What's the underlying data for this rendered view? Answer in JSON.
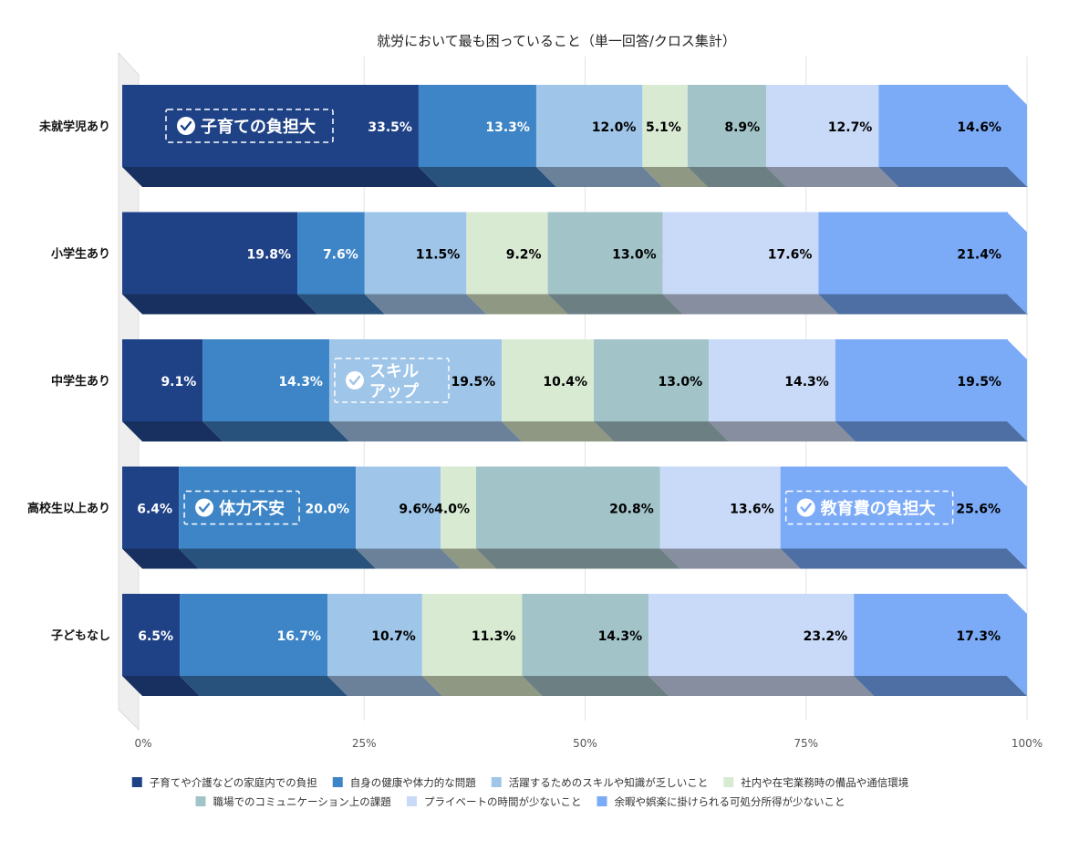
{
  "chart_data": {
    "type": "bar",
    "orientation": "horizontal",
    "stacked": true,
    "normalized": true,
    "title": "就労において最も困っていること（単一回答/クロス集計）",
    "xlabel": "",
    "ylabel": "",
    "xlim": [
      0,
      100
    ],
    "x_ticks": [
      "0%",
      "25%",
      "50%",
      "75%",
      "100%"
    ],
    "grid": true,
    "legend_position": "bottom",
    "categories": [
      "未就学児あり",
      "小学生あり",
      "中学生あり",
      "高校生以上あり",
      "子どもなし"
    ],
    "series": [
      {
        "name": "子育てや介護などの家庭内での負担",
        "color": "#1F4286",
        "shade": "#17305F",
        "label_color": "#ffffff",
        "values": [
          33.5,
          19.8,
          9.1,
          6.4,
          6.5
        ]
      },
      {
        "name": "自身の健康や体力的な問題",
        "color": "#3D85C6",
        "shade": "#28527C",
        "label_color": "#ffffff",
        "values": [
          13.3,
          7.6,
          14.3,
          20.0,
          16.7
        ]
      },
      {
        "name": "活躍するためのスキルや知識が乏しいこと",
        "color": "#9FC5E8",
        "shade": "#6B819A",
        "label_color": "#000000",
        "values": [
          12.0,
          11.5,
          19.5,
          9.6,
          10.7
        ]
      },
      {
        "name": "社内や在宅業務時の備品や通信環境",
        "color": "#D9EAD3",
        "shade": "#8E9882",
        "label_color": "#000000",
        "values": [
          5.1,
          9.2,
          10.4,
          4.0,
          11.3
        ]
      },
      {
        "name": "職場でのコミュニケーション上の課題",
        "color": "#A2C4C9",
        "shade": "#6C8083",
        "label_color": "#000000",
        "values": [
          8.9,
          13.0,
          13.0,
          20.8,
          14.3
        ]
      },
      {
        "name": "プライベートの時間が少ないこと",
        "color": "#C9DAF8",
        "shade": "#868E9F",
        "label_color": "#000000",
        "values": [
          12.7,
          17.6,
          14.3,
          13.6,
          23.2
        ]
      },
      {
        "name": "余暇や娯楽に掛けられる可処分所得が少ないこと",
        "color": "#7BAAF7",
        "shade": "#4E6FA3",
        "label_color": "#000000",
        "values": [
          14.6,
          21.4,
          19.5,
          25.6,
          17.3
        ]
      }
    ],
    "annotations": [
      {
        "category": "未就学児あり",
        "series": 0,
        "lines": [
          "子育ての負担大"
        ]
      },
      {
        "category": "中学生あり",
        "series": 2,
        "lines": [
          "スキル",
          "アップ"
        ]
      },
      {
        "category": "高校生以上あり",
        "series": 1,
        "lines": [
          "体力不安"
        ]
      },
      {
        "category": "高校生以上あり",
        "series": 6,
        "lines": [
          "教育費の負担大"
        ]
      }
    ]
  }
}
